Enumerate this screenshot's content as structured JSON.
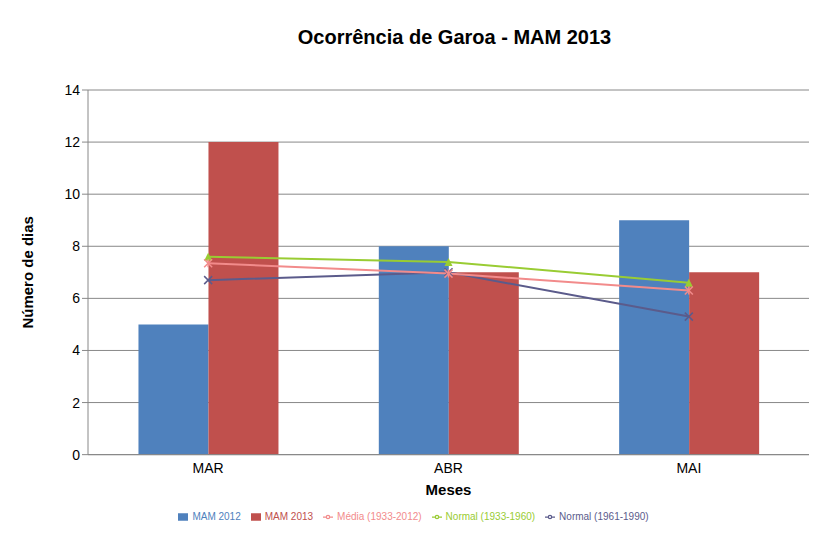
{
  "chart_data": {
    "type": "bar",
    "title": "Ocorrência de Garoa - MAM 2013",
    "x_label": "Meses",
    "y_label": "Número de dias",
    "categories": [
      "MAR",
      "ABR",
      "MAI"
    ],
    "series": [
      {
        "name": "MAM 2012",
        "type": "bar",
        "color": "#4f81bd",
        "values": [
          5,
          8,
          9
        ]
      },
      {
        "name": "MAM 2013",
        "type": "bar",
        "color": "#c0504d",
        "values": [
          12,
          7,
          7
        ]
      },
      {
        "name": "Normal (1933-1960)",
        "type": "line",
        "color": "#99cc33",
        "marker": "triangle",
        "values": [
          7.6,
          7.4,
          6.6
        ]
      },
      {
        "name": "Normal (1961-1990)",
        "type": "line",
        "color": "#5b5b8b",
        "marker": "x",
        "values": [
          6.7,
          7.0,
          5.3
        ]
      },
      {
        "name": "Média (1933-2012)",
        "type": "line",
        "color": "#f28b8b",
        "marker": "star",
        "values": [
          7.35,
          6.95,
          6.3
        ]
      }
    ],
    "ylim": [
      0,
      14
    ],
    "yticks": [
      0,
      2,
      4,
      6,
      8,
      10,
      12,
      14
    ],
    "grid": true,
    "legend": "bottom"
  }
}
